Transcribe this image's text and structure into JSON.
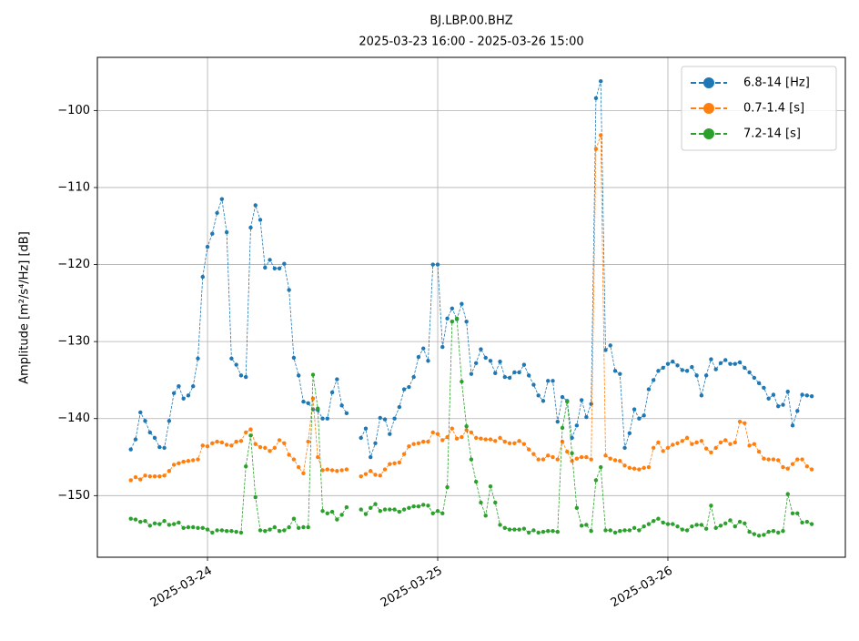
{
  "chart_data": {
    "type": "line",
    "title": "BJ.LBP.00.BHZ",
    "subtitle": "2025-03-23 16:00 - 2025-03-26 15:00",
    "y_label": "Amplitude [m²/s⁴/Hz] [dB]",
    "x": [
      "2025-03-23 16:00",
      "2025-03-23 16:30",
      "2025-03-23 17:00",
      "2025-03-23 17:30",
      "2025-03-23 18:00",
      "2025-03-23 18:30",
      "2025-03-23 19:00",
      "2025-03-23 19:30",
      "2025-03-23 20:00",
      "2025-03-23 20:30",
      "2025-03-23 21:00",
      "2025-03-23 21:30",
      "2025-03-23 22:00",
      "2025-03-23 22:30",
      "2025-03-23 23:00",
      "2025-03-23 23:30",
      "2025-03-24 00:00",
      "2025-03-24 00:30",
      "2025-03-24 01:00",
      "2025-03-24 01:30",
      "2025-03-24 02:00",
      "2025-03-24 02:30",
      "2025-03-24 03:00",
      "2025-03-24 03:30",
      "2025-03-24 04:00",
      "2025-03-24 04:30",
      "2025-03-24 05:00",
      "2025-03-24 05:30",
      "2025-03-24 06:00",
      "2025-03-24 06:30",
      "2025-03-24 07:00",
      "2025-03-24 07:30",
      "2025-03-24 08:00",
      "2025-03-24 08:30",
      "2025-03-24 09:00",
      "2025-03-24 09:30",
      "2025-03-24 10:00",
      "2025-03-24 10:30",
      "2025-03-24 11:00",
      "2025-03-24 11:30",
      "2025-03-24 12:00",
      "2025-03-24 12:30",
      "2025-03-24 13:00",
      "2025-03-24 13:30",
      "2025-03-24 14:00",
      "2025-03-24 14:30",
      "2025-03-24 15:00",
      "2025-03-24 15:30",
      "2025-03-24 16:00",
      "2025-03-24 16:30",
      "2025-03-24 17:00",
      "2025-03-24 17:30",
      "2025-03-24 18:00",
      "2025-03-24 18:30",
      "2025-03-24 19:00",
      "2025-03-24 19:30",
      "2025-03-24 20:00",
      "2025-03-24 20:30",
      "2025-03-24 21:00",
      "2025-03-24 21:30",
      "2025-03-24 22:00",
      "2025-03-24 22:30",
      "2025-03-24 23:00",
      "2025-03-24 23:30",
      "2025-03-25 00:00",
      "2025-03-25 00:30",
      "2025-03-25 01:00",
      "2025-03-25 01:30",
      "2025-03-25 02:00",
      "2025-03-25 02:30",
      "2025-03-25 03:00",
      "2025-03-25 03:30",
      "2025-03-25 04:00",
      "2025-03-25 04:30",
      "2025-03-25 05:00",
      "2025-03-25 05:30",
      "2025-03-25 06:00",
      "2025-03-25 06:30",
      "2025-03-25 07:00",
      "2025-03-25 07:30",
      "2025-03-25 08:00",
      "2025-03-25 08:30",
      "2025-03-25 09:00",
      "2025-03-25 09:30",
      "2025-03-25 10:00",
      "2025-03-25 10:30",
      "2025-03-25 11:00",
      "2025-03-25 11:30",
      "2025-03-25 12:00",
      "2025-03-25 12:30",
      "2025-03-25 13:00",
      "2025-03-25 13:30",
      "2025-03-25 14:00",
      "2025-03-25 14:30",
      "2025-03-25 15:00",
      "2025-03-25 15:30",
      "2025-03-25 16:00",
      "2025-03-25 16:30",
      "2025-03-25 17:00",
      "2025-03-25 17:30",
      "2025-03-25 18:00",
      "2025-03-25 18:30",
      "2025-03-25 19:00",
      "2025-03-25 19:30",
      "2025-03-25 20:00",
      "2025-03-25 20:30",
      "2025-03-25 21:00",
      "2025-03-25 21:30",
      "2025-03-25 22:00",
      "2025-03-25 22:30",
      "2025-03-25 23:00",
      "2025-03-25 23:30",
      "2025-03-26 00:00",
      "2025-03-26 00:30",
      "2025-03-26 01:00",
      "2025-03-26 01:30",
      "2025-03-26 02:00",
      "2025-03-26 02:30",
      "2025-03-26 03:00",
      "2025-03-26 03:30",
      "2025-03-26 04:00",
      "2025-03-26 04:30",
      "2025-03-26 05:00",
      "2025-03-26 05:30",
      "2025-03-26 06:00",
      "2025-03-26 06:30",
      "2025-03-26 07:00",
      "2025-03-26 07:30",
      "2025-03-26 08:00",
      "2025-03-26 08:30",
      "2025-03-26 09:00",
      "2025-03-26 09:30",
      "2025-03-26 10:00",
      "2025-03-26 10:30",
      "2025-03-26 11:00",
      "2025-03-26 11:30",
      "2025-03-26 12:00",
      "2025-03-26 12:30",
      "2025-03-26 13:00",
      "2025-03-26 13:30",
      "2025-03-26 14:00",
      "2025-03-26 14:30",
      "2025-03-26 15:00"
    ],
    "series": [
      {
        "name": "6.8-14 [Hz]",
        "color": "#1f77b4",
        "values": [
          -144,
          -142.7,
          -139.2,
          -140.3,
          -141.8,
          -142.5,
          -143.7,
          -143.8,
          -140.3,
          -136.7,
          -135.8,
          -137.4,
          -137,
          -135.8,
          -132.2,
          -121.6,
          -117.7,
          -116,
          -113.3,
          -111.5,
          -115.8,
          -132.2,
          -133,
          -134.4,
          -134.6,
          -115.2,
          -112.3,
          -114.2,
          -120.4,
          -119.4,
          -120.5,
          -120.5,
          -119.9,
          -123.3,
          -132.1,
          -134.4,
          -137.8,
          -138,
          -138.8,
          -138.9,
          -140,
          -140,
          -136.6,
          -134.9,
          -138.3,
          -139.3,
          null,
          null,
          -142.5,
          -141.3,
          -145,
          -143.2,
          -139.9,
          -140.1,
          -142,
          -140,
          -138.5,
          -136.2,
          -135.9,
          -134.6,
          -132,
          -130.9,
          -132.5,
          -120,
          -120,
          -130.7,
          -127,
          -125.7,
          -127.1,
          -125.1,
          -127.4,
          -134.2,
          -132.8,
          -131,
          -132.1,
          -132.5,
          -134.1,
          -132.6,
          -134.6,
          -134.7,
          -134,
          -134,
          -133,
          -134.4,
          -135.6,
          -137,
          -137.7,
          -135.1,
          -135.1,
          -140.4,
          -137.2,
          -137.7,
          -142.5,
          -140.9,
          -137.6,
          -139.8,
          -138.1,
          -98.4,
          -96.2,
          -131.1,
          -130.5,
          -133.8,
          -134.2,
          -143.8,
          -141.9,
          -138.8,
          -140,
          -139.6,
          -136.2,
          -135,
          -133.8,
          -133.4,
          -132.9,
          -132.6,
          -133.1,
          -133.7,
          -133.8,
          -133.3,
          -134.4,
          -137,
          -134.4,
          -132.3,
          -133.6,
          -132.8,
          -132.4,
          -132.9,
          -132.9,
          -132.7,
          -133.4,
          -134,
          -134.7,
          -135.4,
          -136,
          -137.4,
          -136.9,
          -138.4,
          -138.2,
          -136.5,
          -140.9,
          -139,
          -136.9,
          -137,
          -137.1
        ]
      },
      {
        "name": "0.7-1.4 [s]",
        "color": "#ff7f0e",
        "values": [
          -148,
          -147.6,
          -147.9,
          -147.4,
          -147.5,
          -147.5,
          -147.5,
          -147.4,
          -146.8,
          -146,
          -145.8,
          -145.6,
          -145.5,
          -145.4,
          -145.3,
          -143.5,
          -143.6,
          -143.2,
          -143,
          -143.1,
          -143.4,
          -143.5,
          -143,
          -142.9,
          -141.8,
          -141.4,
          -143.3,
          -143.7,
          -143.8,
          -144.2,
          -143.8,
          -142.8,
          -143.2,
          -144.7,
          -145.3,
          -146.3,
          -147.1,
          -143,
          -137.4,
          -145,
          -146.7,
          -146.6,
          -146.7,
          -146.8,
          -146.7,
          -146.6,
          null,
          null,
          -147.5,
          -147.2,
          -146.8,
          -147.3,
          -147.4,
          -146.6,
          -145.9,
          -145.8,
          -145.7,
          -144.6,
          -143.6,
          -143.3,
          -143.2,
          -143,
          -143,
          -141.8,
          -142,
          -142.8,
          -142.4,
          -141.3,
          -142.6,
          -142.4,
          -141.5,
          -141.8,
          -142.5,
          -142.6,
          -142.7,
          -142.7,
          -142.9,
          -142.5,
          -143,
          -143.2,
          -143.2,
          -142.9,
          -143.3,
          -144,
          -144.6,
          -145.3,
          -145.3,
          -144.8,
          -145,
          -145.3,
          -143,
          -144.3,
          -145.5,
          -145.2,
          -145,
          -145,
          -145.3,
          -105,
          -103.2,
          -144.8,
          -145.2,
          -145.4,
          -145.5,
          -146.1,
          -146.4,
          -146.5,
          -146.6,
          -146.4,
          -146.3,
          -143.8,
          -143.1,
          -144.2,
          -143.8,
          -143.4,
          -143.2,
          -142.9,
          -142.5,
          -143.3,
          -143.1,
          -142.9,
          -143.9,
          -144.4,
          -143.8,
          -143.1,
          -142.8,
          -143.3,
          -143.1,
          -140.4,
          -140.6,
          -143.5,
          -143.3,
          -144.3,
          -145.2,
          -145.3,
          -145.3,
          -145.4,
          -146.3,
          -146.5,
          -145.9,
          -145.3,
          -145.3,
          -146.2,
          -146.6
        ]
      },
      {
        "name": "7.2-14 [s]",
        "color": "#2ca02c",
        "values": [
          -153,
          -153.1,
          -153.4,
          -153.3,
          -153.9,
          -153.6,
          -153.7,
          -153.3,
          -153.8,
          -153.7,
          -153.5,
          -154.2,
          -154.1,
          -154.1,
          -154.2,
          -154.2,
          -154.4,
          -154.8,
          -154.5,
          -154.5,
          -154.6,
          -154.6,
          -154.7,
          -154.8,
          -146.2,
          -142.2,
          -150.2,
          -154.5,
          -154.6,
          -154.4,
          -154.1,
          -154.6,
          -154.5,
          -154.1,
          -153,
          -154.2,
          -154.1,
          -154.1,
          -134.3,
          -138.7,
          -152,
          -152.3,
          -152.1,
          -153.1,
          -152.5,
          -151.5,
          null,
          null,
          -151.8,
          -152.4,
          -151.6,
          -151.1,
          -152,
          -151.8,
          -151.8,
          -151.8,
          -152.1,
          -151.8,
          -151.6,
          -151.4,
          -151.4,
          -151.2,
          -151.3,
          -152.3,
          -152,
          -152.3,
          -148.9,
          -127.4,
          -127,
          -135.2,
          -141,
          -145.3,
          -148.2,
          -150.9,
          -152.6,
          -148.8,
          -150.9,
          -153.8,
          -154.2,
          -154.4,
          -154.4,
          -154.4,
          -154.3,
          -154.8,
          -154.5,
          -154.8,
          -154.7,
          -154.6,
          -154.6,
          -154.7,
          -141.2,
          -137.8,
          -144.5,
          -151.6,
          -153.9,
          -153.8,
          -154.6,
          -148,
          -146.3,
          -154.5,
          -154.5,
          -154.8,
          -154.6,
          -154.5,
          -154.5,
          -154.2,
          -154.5,
          -154,
          -153.7,
          -153.3,
          -153,
          -153.5,
          -153.7,
          -153.7,
          -154,
          -154.4,
          -154.5,
          -154,
          -153.8,
          -153.8,
          -154.3,
          -151.3,
          -154.2,
          -153.9,
          -153.6,
          -153.2,
          -154,
          -153.4,
          -153.6,
          -154.7,
          -155,
          -155.2,
          -155.1,
          -154.7,
          -154.6,
          -154.8,
          -154.6,
          -149.8,
          -152.3,
          -152.3,
          -153.5,
          -153.4,
          -153.7
        ]
      }
    ],
    "xlim": [
      "2025-03-23 12:31",
      "2025-03-26 18:30"
    ],
    "xticks": [
      "2025-03-24",
      "2025-03-25",
      "2025-03-26"
    ],
    "ylim": [
      -158.0,
      -93.1
    ],
    "yticks": [
      {
        "value": -150,
        "label": "−150"
      },
      {
        "value": -140,
        "label": "−140"
      },
      {
        "value": -130,
        "label": "−130"
      },
      {
        "value": -120,
        "label": "−120"
      },
      {
        "value": -110,
        "label": "−110"
      },
      {
        "value": -100,
        "label": "−100"
      }
    ],
    "grid": true,
    "legend": "upper right"
  }
}
